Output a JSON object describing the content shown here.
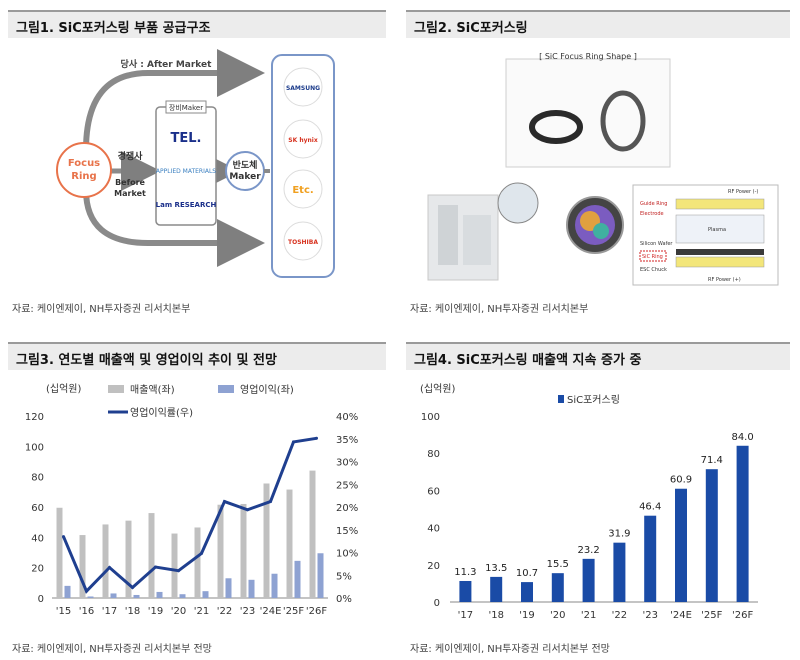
{
  "fig1": {
    "title": "그림1. SiC포커스링 부품 공급구조",
    "source": "자료: 케이엔제이, NH투자증권 리서치본부",
    "focus_ring": [
      "Focus",
      "Ring"
    ],
    "top_arrow": "당사 : After Market",
    "competitor": "경쟁사",
    "before_market": [
      "Before",
      "Market"
    ],
    "equipment_maker": "장비Maker",
    "equipment": [
      "TEL.",
      "APPLIED MATERIALS",
      "Lam RESEARCH"
    ],
    "semiconductor_maker": [
      "반도체",
      "Maker"
    ],
    "customers": [
      "SAMSUNG",
      "SK hynix",
      "Etc.",
      "TOSHIBA"
    ],
    "colors": {
      "focus": "#e8734a",
      "maker": "#7a96c8",
      "arrow": "#7f7f7f"
    }
  },
  "fig2": {
    "title": "그림2. SiC포커스링",
    "source": "자료: 케이엔제이, NH투자증권 리서치본부",
    "shape_caption": "[ SiC Focus Ring Shape ]",
    "diagram_labels": [
      "RF Power (-)",
      "Guide Ring",
      "Electrode",
      "Plasma",
      "Silicon Wafer",
      "SiC Ring",
      "ESC Chuck",
      "RF Power (+)"
    ]
  },
  "fig3": {
    "title": "그림3. 연도별 매출액 및 영업이익 추이 및 전망",
    "source": "자료: 케이엔제이, NH투자증권 리서치본부 전망",
    "chart_data": {
      "type": "bar",
      "unit_label": "(십억원)",
      "categories": [
        "'15",
        "'16",
        "'17",
        "'18",
        "'19",
        "'20",
        "'21",
        "'22",
        "'23",
        "'24E",
        "'25F",
        "'26F"
      ],
      "series": [
        {
          "name": "매출액(좌)",
          "type": "bar",
          "color": "#c0c0c0",
          "values": [
            59.5,
            41.5,
            48.5,
            51,
            56,
            42.5,
            46.5,
            61.5,
            62,
            75.5,
            71.5,
            84
          ]
        },
        {
          "name": "영업이익(좌)",
          "type": "bar",
          "color": "#8ea2d2",
          "values": [
            8,
            1,
            3,
            2,
            4,
            2.5,
            4.5,
            13,
            12,
            16,
            24.5,
            29.5
          ]
        },
        {
          "name": "영업이익률(우)",
          "type": "line",
          "color": "#1f3f8f",
          "values": [
            13.5,
            1.5,
            6.7,
            2.3,
            6.8,
            6.0,
            9.8,
            21.2,
            19.4,
            21.2,
            34.3,
            35.1
          ]
        }
      ],
      "y_left": {
        "min": 0,
        "max": 120,
        "ticks": [
          0,
          20,
          40,
          60,
          80,
          100,
          120
        ]
      },
      "y_right": {
        "min": 0,
        "max": 40,
        "ticks": [
          "0%",
          "5%",
          "10%",
          "15%",
          "20%",
          "25%",
          "30%",
          "35%",
          "40%"
        ]
      }
    }
  },
  "fig4": {
    "title": "그림4. SiC포커스링 매출액 지속 증가 중",
    "source": "자료: 케이엔제이, NH투자증권 리서치본부 전망",
    "chart_data": {
      "type": "bar",
      "unit_label": "(십억원)",
      "categories": [
        "'17",
        "'18",
        "'19",
        "'20",
        "'21",
        "'22",
        "'23",
        "'24E",
        "'25F",
        "'26F"
      ],
      "series": [
        {
          "name": "SiC포커스링",
          "color": "#1a4ba6",
          "values": [
            11.3,
            13.5,
            10.7,
            15.5,
            23.2,
            31.9,
            46.4,
            60.9,
            71.4,
            84.0
          ]
        }
      ],
      "value_labels": [
        "11.3",
        "13.5",
        "10.7",
        "15.5",
        "23.2",
        "31.9",
        "46.4",
        "60.9",
        "71.4",
        "84.0"
      ],
      "y": {
        "min": 0,
        "max": 100,
        "ticks": [
          0,
          20,
          40,
          60,
          80,
          100
        ]
      }
    }
  }
}
